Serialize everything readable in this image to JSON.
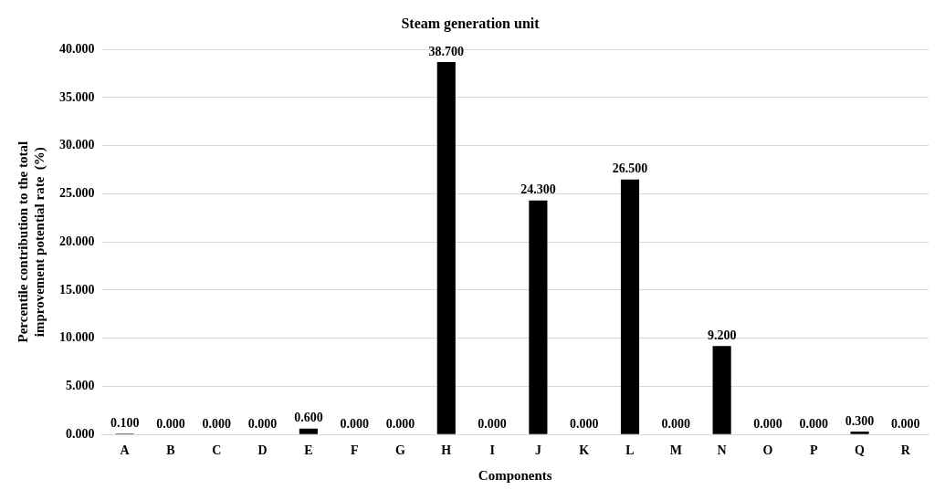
{
  "chart_data": {
    "type": "bar",
    "title": "Steam generation unit",
    "xlabel": "Components",
    "ylabel": "Percentile contribution to the total improvement potential rate  (%)",
    "categories": [
      "A",
      "B",
      "C",
      "D",
      "E",
      "F",
      "G",
      "H",
      "I",
      "J",
      "K",
      "L",
      "M",
      "N",
      "O",
      "P",
      "Q",
      "R"
    ],
    "values": [
      0.1,
      0,
      0,
      0,
      0.6,
      0,
      0,
      38.7,
      0,
      24.3,
      0,
      26.5,
      0,
      9.2,
      0,
      0,
      0.3,
      0
    ],
    "value_labels": [
      "0.100",
      "0.000",
      "0.000",
      "0.000",
      "0.600",
      "0.000",
      "0.000",
      "38.700",
      "0.000",
      "24.300",
      "0.000",
      "26.500",
      "0.000",
      "9.200",
      "0.000",
      "0.000",
      "0.300",
      "0.000"
    ],
    "color": "#000000",
    "ylim": [
      0,
      40
    ],
    "yticks": [
      {
        "value": 0,
        "label": "0.000"
      },
      {
        "value": 5,
        "label": "5.000"
      },
      {
        "value": 10,
        "label": "10.000"
      },
      {
        "value": 15,
        "label": "15.000"
      },
      {
        "value": 20,
        "label": "20.000"
      },
      {
        "value": 25,
        "label": "25.000"
      },
      {
        "value": 30,
        "label": "30.000"
      },
      {
        "value": 35,
        "label": "35.000"
      },
      {
        "value": 40,
        "label": "40.000"
      }
    ],
    "grid": "y"
  }
}
